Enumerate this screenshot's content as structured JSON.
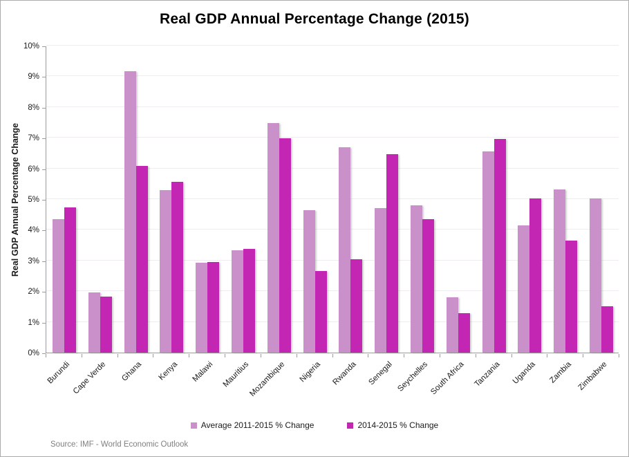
{
  "title": "Real GDP Annual Percentage Change (2015)",
  "source_note": "Source: IMF - World Economic Outlook",
  "colors": {
    "series_light": "#CA90CA",
    "series_dark": "#C226B2",
    "axis": "#9B9B9B",
    "gridline": "#F0EBF0",
    "frame_border": "#ABABAB",
    "source_text": "#808080",
    "title_text": "#000000"
  },
  "chart_data": {
    "type": "bar",
    "title": "Real GDP Annual Percentage Change (2015)",
    "xlabel": "",
    "ylabel": "Real GDP Annual Percentage Change",
    "ylim": [
      0,
      10
    ],
    "y_tick_step": 1,
    "y_tick_labels": [
      "0%",
      "1%",
      "2%",
      "3%",
      "4%",
      "5%",
      "6%",
      "7%",
      "8%",
      "9%",
      "10%"
    ],
    "grid": "horizontal",
    "legend_position": "bottom-center",
    "categories": [
      "Burundi",
      "Cape Verde",
      "Ghana",
      "Kenya",
      "Malawi",
      "Mauritius",
      "Mozambique",
      "Nigeria",
      "Rwanda",
      "Senegal",
      "Seychelles",
      "South Africa",
      "Tanzania",
      "Uganda",
      "Zambia",
      "Zimbabwe"
    ],
    "series": [
      {
        "name": "Average 2011-2015 % Change",
        "color": "#CA90CA",
        "values": [
          4.35,
          1.96,
          9.17,
          5.29,
          2.93,
          3.34,
          7.47,
          4.64,
          6.68,
          4.71,
          4.79,
          1.81,
          6.55,
          4.15,
          5.32,
          5.03
        ]
      },
      {
        "name": "2014-2015 % Change",
        "color": "#C226B2",
        "values": [
          4.74,
          1.83,
          6.08,
          5.57,
          2.94,
          3.37,
          6.98,
          2.65,
          3.03,
          6.47,
          4.35,
          1.28,
          6.97,
          5.03,
          3.64,
          1.5
        ]
      }
    ]
  }
}
